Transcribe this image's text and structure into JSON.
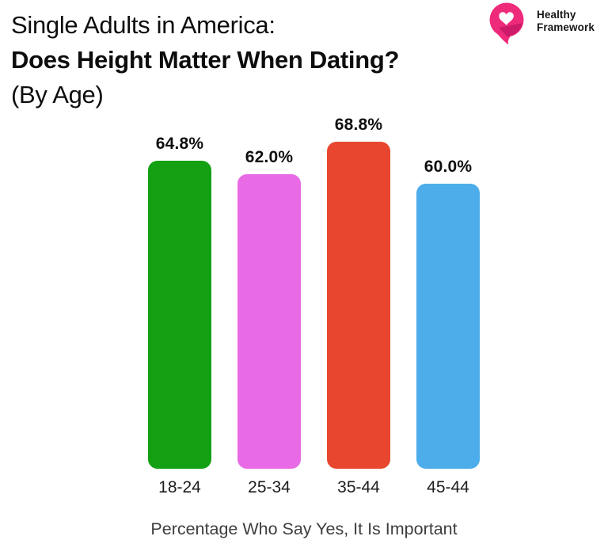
{
  "header": {
    "title_line1": "Single Adults in America:",
    "title_line2": "Does Height Matter When Dating?",
    "title_line3": "(By Age)"
  },
  "brand": {
    "name_line1": "Healthy",
    "name_line2": "Framework",
    "logo_color": "#EE2A7B",
    "logo_shade": "#C21563",
    "logo_icon": "heart-speech-bubble"
  },
  "chart_data": {
    "type": "bar",
    "title": "Single Adults in America: Does Height Matter When Dating? (By Age)",
    "categories": [
      "18-24",
      "25-34",
      "35-44",
      "45-44"
    ],
    "values": [
      64.8,
      62.0,
      68.8,
      60.0
    ],
    "value_labels": [
      "64.8%",
      "62.0%",
      "68.8%",
      "60.0%"
    ],
    "bar_colors": [
      "#13A013",
      "#E86AE5",
      "#E8462E",
      "#4CADEA"
    ],
    "xlabel": "Percentage Who Say Yes, It Is Important",
    "ylabel": "",
    "ylim": [
      0,
      100
    ],
    "grid": false,
    "legend": false,
    "background": "#FFFFFF"
  }
}
